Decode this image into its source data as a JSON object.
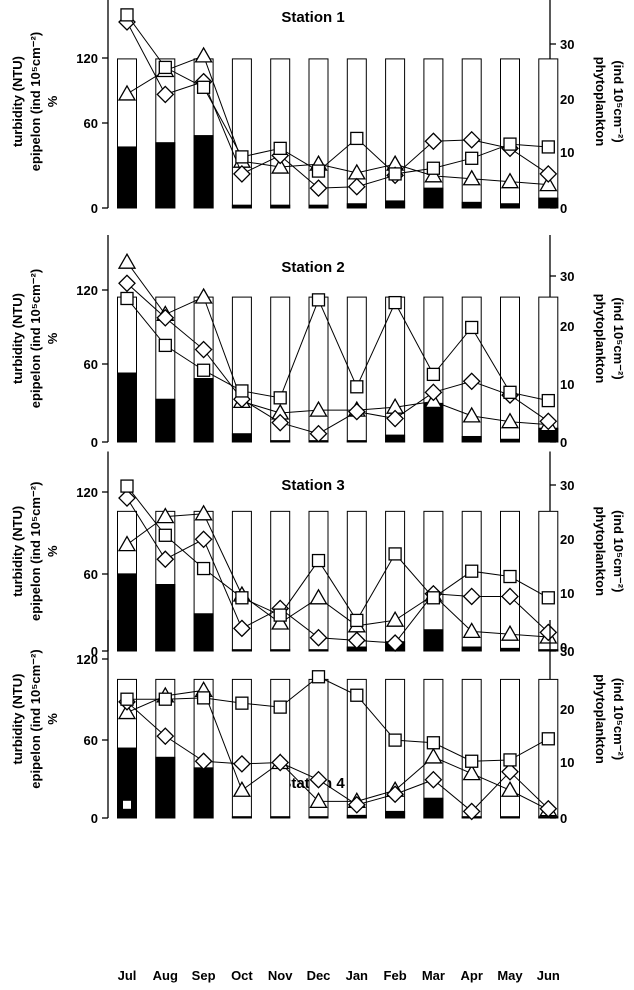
{
  "figure": {
    "x_months": [
      "Jul",
      "Aug",
      "Sep",
      "Oct",
      "Nov",
      "Dec",
      "Jan",
      "Feb",
      "Mar",
      "Apr",
      "May",
      "Jun"
    ],
    "left_axis_label_lines": [
      "turbidity (NTU)",
      "epipelon  (ind 10⁵cm⁻²)",
      "%"
    ],
    "right_axis_label_lines": [
      "phytoplankton",
      "(ind 10⁵cm⁻²)"
    ]
  },
  "chart_data": [
    {
      "type": "bar",
      "title": "Station 1",
      "categories": [
        "Jul",
        "Aug",
        "Sep",
        "Oct",
        "Nov",
        "Dec",
        "Jan",
        "Feb",
        "Mar",
        "Apr",
        "May",
        "Jun"
      ],
      "left_ylim": [
        0,
        150
      ],
      "left_ticks": [
        0,
        60,
        120
      ],
      "right_ylim": [
        0,
        35
      ],
      "right_ticks": [
        0,
        10,
        20,
        30
      ],
      "bar_total": [
        105,
        105,
        105,
        105,
        105,
        105,
        105,
        105,
        105,
        105,
        105,
        105
      ],
      "bar_black": [
        43,
        46,
        51,
        2,
        2,
        2,
        3,
        5,
        14,
        4,
        3,
        7
      ],
      "square": [
        136,
        99,
        85,
        36,
        42,
        26,
        49,
        24,
        28,
        35,
        45,
        43
      ],
      "diamond": [
        131,
        80,
        89,
        24,
        37,
        14,
        15,
        23,
        47,
        48,
        42,
        24
      ],
      "triangle_right_axis": [
        19.5,
        23.5,
        26,
        8,
        7,
        7.5,
        6,
        7.5,
        5.5,
        5,
        4.5,
        4
      ]
    },
    {
      "type": "bar",
      "title": "Station 2",
      "categories": [
        "Jul",
        "Aug",
        "Sep",
        "Oct",
        "Nov",
        "Dec",
        "Jan",
        "Feb",
        "Mar",
        "Apr",
        "May",
        "Jun"
      ],
      "left_ylim": [
        0,
        150
      ],
      "left_ticks": [
        0,
        60,
        120
      ],
      "right_ylim": [
        0,
        35
      ],
      "right_ticks": [
        0,
        10,
        20,
        30
      ],
      "bar_total": [
        105,
        105,
        105,
        105,
        105,
        105,
        105,
        105,
        105,
        105,
        105,
        105
      ],
      "bar_black": [
        50,
        31,
        46,
        6,
        1,
        1,
        1,
        5,
        28,
        4,
        2,
        10
      ],
      "square": [
        104,
        70,
        52,
        37,
        32,
        103,
        40,
        101,
        49,
        83,
        36,
        30
      ],
      "diamond": [
        115,
        90,
        67,
        31,
        14,
        6,
        22,
        17,
        36,
        44,
        34,
        15
      ],
      "triangle_right_axis": [
        31,
        22,
        25,
        7,
        5,
        5.5,
        5.5,
        6,
        7,
        4.5,
        3.5,
        3
      ]
    },
    {
      "type": "bar",
      "title": "Station 3",
      "categories": [
        "Jul",
        "Aug",
        "Sep",
        "Oct",
        "Nov",
        "Dec",
        "Jan",
        "Feb",
        "Mar",
        "Apr",
        "May",
        "Jun"
      ],
      "left_ylim": [
        0,
        150
      ],
      "left_ticks": [
        0,
        60,
        120
      ],
      "right_ylim": [
        0,
        35
      ],
      "right_ticks": [
        0,
        10,
        20,
        30
      ],
      "bar_total": [
        105,
        105,
        105,
        105,
        105,
        105,
        105,
        105,
        105,
        105,
        105,
        105
      ],
      "bar_black": [
        58,
        50,
        28,
        1,
        1,
        1,
        3,
        7,
        16,
        3,
        2,
        1
      ],
      "square": [
        124,
        87,
        62,
        40,
        27,
        68,
        23,
        73,
        40,
        60,
        56,
        40
      ],
      "diamond": [
        115,
        69,
        84,
        17,
        32,
        10,
        8,
        6,
        43,
        41,
        41,
        14
      ],
      "triangle_right_axis": [
        19,
        24,
        24.5,
        10,
        5,
        9.5,
        4.5,
        5.5,
        10,
        3.5,
        3,
        2.5
      ]
    },
    {
      "type": "bar",
      "title": "Station 4",
      "categories": [
        "Jul",
        "Aug",
        "Sep",
        "Oct",
        "Nov",
        "Dec",
        "Jan",
        "Feb",
        "Mar",
        "Apr",
        "May",
        "Jun"
      ],
      "left_ylim": [
        0,
        150
      ],
      "left_ticks": [
        0,
        60,
        120
      ],
      "right_ylim": [
        0,
        35
      ],
      "right_ticks": [
        0,
        10,
        20,
        30
      ],
      "bar_total": [
        105,
        105,
        105,
        105,
        105,
        105,
        105,
        105,
        105,
        105,
        105,
        105
      ],
      "bar_black": [
        53,
        46,
        38,
        1,
        1,
        1,
        2,
        5,
        15,
        1,
        1,
        1
      ],
      "white_marker_in_bar": {
        "category": "Jul",
        "value": 10
      },
      "square": [
        90,
        90,
        91,
        87,
        84,
        107,
        93,
        59,
        57,
        43,
        44,
        60
      ],
      "diamond": [
        88,
        62,
        43,
        41,
        42,
        29,
        10,
        18,
        29,
        5,
        35,
        7
      ],
      "triangle_right_axis": [
        19,
        22,
        23,
        5,
        10,
        3,
        3,
        5,
        11,
        8,
        5,
        1.5
      ]
    }
  ]
}
